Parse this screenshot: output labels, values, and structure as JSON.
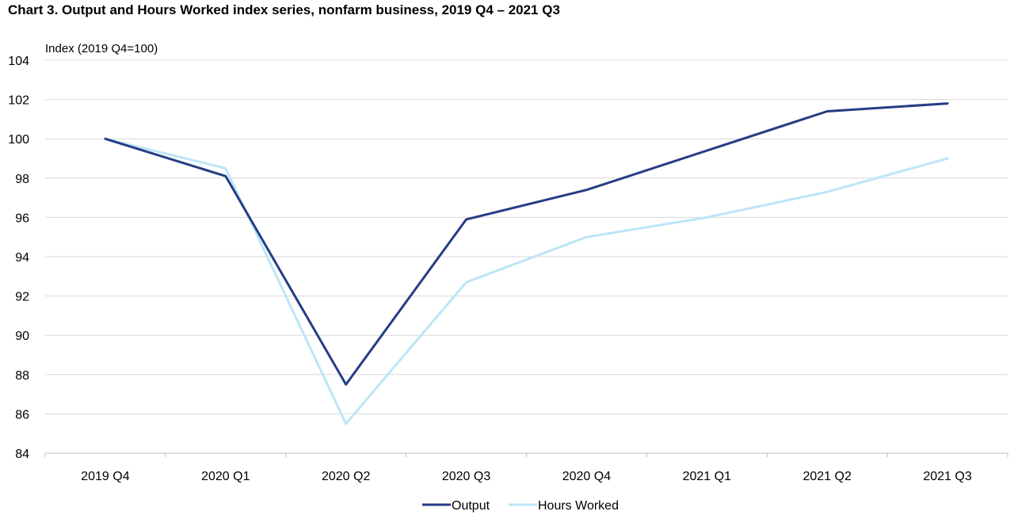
{
  "colors": {
    "output": "#253d85",
    "hours_worked": "#bde5f7",
    "gridline": "#d9d9d9",
    "axis": "#bfbfbf"
  },
  "chart_data": {
    "type": "line",
    "title": "Chart 3.  Output and Hours Worked index series, nonfarm business, 2019 Q4 – 2021 Q3",
    "ylabel": "Index (2019 Q4=100)",
    "xlabel": "",
    "categories": [
      "2019 Q4",
      "2020 Q1",
      "2020 Q2",
      "2020 Q3",
      "2020 Q4",
      "2021 Q1",
      "2021 Q2",
      "2021 Q3"
    ],
    "ylim": [
      84,
      104
    ],
    "yticks": [
      "84",
      "86",
      "88",
      "90",
      "92",
      "94",
      "96",
      "98",
      "100",
      "102",
      "104"
    ],
    "grid": true,
    "legend_position": "bottom-center",
    "series": [
      {
        "name": "Output",
        "values": [
          100.0,
          98.1,
          87.5,
          95.9,
          97.4,
          99.4,
          101.4,
          101.8
        ]
      },
      {
        "name": "Hours Worked",
        "values": [
          100.0,
          98.5,
          85.5,
          92.7,
          95.0,
          96.0,
          97.3,
          99.0
        ]
      }
    ]
  }
}
